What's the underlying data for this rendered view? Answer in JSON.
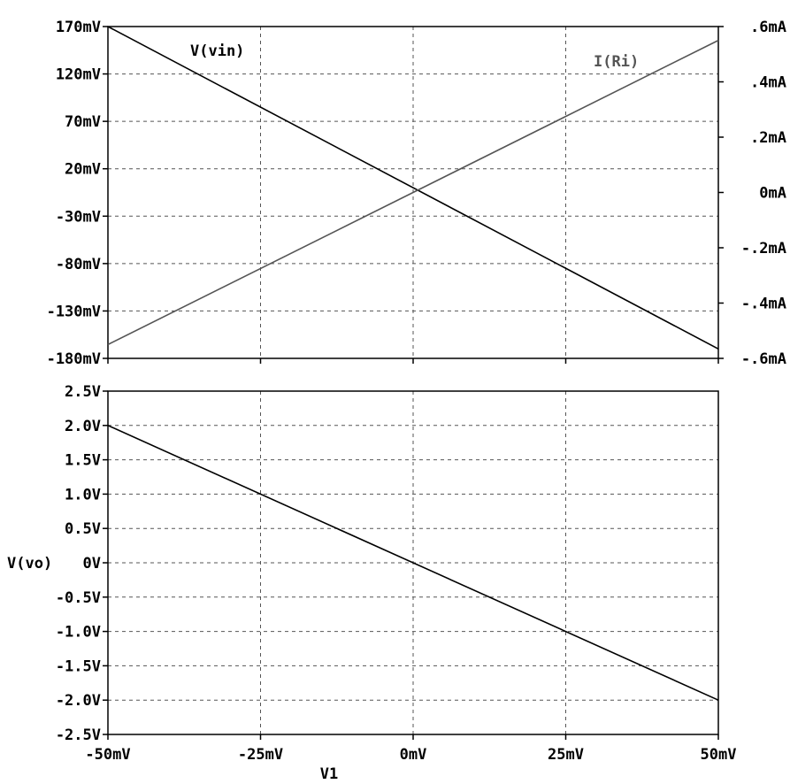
{
  "chart_data": [
    {
      "type": "line",
      "x": [
        -50,
        50
      ],
      "xlim": [
        -50,
        50
      ],
      "xticks": [
        -50,
        -25,
        0,
        25,
        50
      ],
      "ylim": [
        -180,
        170
      ],
      "yticks": [
        170,
        120,
        70,
        20,
        -30,
        -80,
        -130,
        -180
      ],
      "ytick_labels": [
        "170mV",
        "120mV",
        "70mV",
        "20mV",
        "-30mV",
        "-80mV",
        "-130mV",
        "-180mV"
      ],
      "y2lim": [
        -0.6,
        0.6
      ],
      "y2ticks": [
        0.6,
        0.4,
        0.2,
        0,
        -0.2,
        -0.4,
        -0.6
      ],
      "y2tick_labels": [
        ".6mA",
        ".4mA",
        ".2mA",
        "0mA",
        "-.2mA",
        "-.4mA",
        "-.6mA"
      ],
      "grid": true,
      "series": [
        {
          "name": "V(vin)",
          "axis": "left",
          "x": [
            -50,
            50
          ],
          "y": [
            170,
            -170
          ],
          "color": "#000000"
        },
        {
          "name": "I(Ri)",
          "axis": "right",
          "x": [
            -50,
            50
          ],
          "y": [
            -0.55,
            0.55
          ],
          "color": "#555555"
        }
      ]
    },
    {
      "type": "line",
      "xlim": [
        -50,
        50
      ],
      "xticks": [
        -50,
        -25,
        0,
        25,
        50
      ],
      "xtick_labels": [
        "-50mV",
        "-25mV",
        "0mV",
        "25mV",
        "50mV"
      ],
      "xlabel": "V1",
      "ylabel": "V(vo)",
      "ylim": [
        -2.5,
        2.5
      ],
      "yticks": [
        2.5,
        2.0,
        1.5,
        1.0,
        0.5,
        0,
        -0.5,
        -1.0,
        -1.5,
        -2.0,
        -2.5
      ],
      "ytick_labels": [
        "2.5V",
        "2.0V",
        "1.5V",
        "1.0V",
        "0.5V",
        "0V",
        "-0.5V",
        "-1.0V",
        "-1.5V",
        "-2.0V",
        "-2.5V"
      ],
      "grid": true,
      "series": [
        {
          "axis": "left",
          "x": [
            -50,
            50
          ],
          "y": [
            2.0,
            -2.0
          ],
          "color": "#000000"
        }
      ]
    }
  ]
}
